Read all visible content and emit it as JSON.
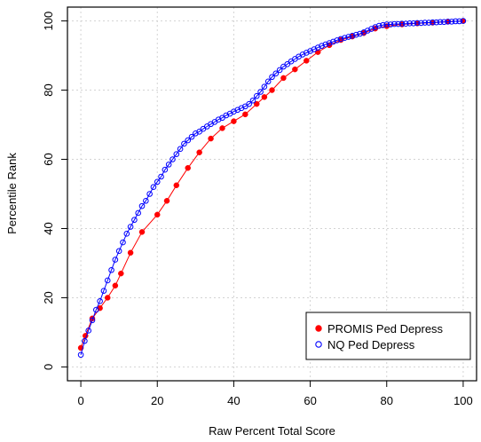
{
  "chart_data": {
    "type": "line",
    "xlabel": "Raw Percent Total Score",
    "ylabel": "Percentile Rank",
    "xlim": [
      -3.5,
      103.5
    ],
    "ylim": [
      -4,
      104
    ],
    "xticks": [
      0,
      20,
      40,
      60,
      80,
      100
    ],
    "yticks": [
      0,
      20,
      40,
      60,
      80,
      100
    ],
    "grid": true,
    "legend_position": "bottom-right",
    "series": [
      {
        "name": "PROMIS Ped Depress",
        "color": "#ff0000",
        "marker": "filled-circle",
        "x": [
          0,
          1.2,
          3,
          5,
          7,
          9,
          10.5,
          13,
          16,
          20,
          22.5,
          25,
          28,
          31,
          34,
          37,
          40,
          43,
          46,
          48,
          50,
          53,
          56,
          59,
          62,
          65,
          68,
          71,
          74,
          77,
          80,
          84,
          88,
          92,
          96,
          100
        ],
        "y": [
          5.5,
          9,
          14,
          17,
          20,
          23.5,
          27,
          33,
          39,
          44,
          48,
          52.5,
          57.5,
          62,
          66,
          69,
          71,
          73,
          76,
          78,
          80,
          83.5,
          86,
          88.5,
          91,
          93,
          94.5,
          95.5,
          96.5,
          97.8,
          98.5,
          99,
          99.3,
          99.5,
          99.8,
          100
        ]
      },
      {
        "name": "NQ Ped Depress",
        "color": "#0000ff",
        "marker": "open-circle",
        "x": [
          0,
          1,
          2,
          3,
          4,
          5,
          6,
          7,
          8,
          9,
          10,
          11,
          12,
          13,
          14,
          15,
          16,
          17,
          18,
          19,
          20,
          21,
          22,
          23,
          24,
          25,
          26,
          27,
          28,
          29,
          30,
          31,
          32,
          33,
          34,
          35,
          36,
          37,
          38,
          39,
          40,
          41,
          42,
          43,
          44,
          45,
          46,
          47,
          48,
          49,
          50,
          51,
          52,
          53,
          54,
          55,
          56,
          57,
          58,
          59,
          60,
          61,
          62,
          63,
          64,
          65,
          66,
          67,
          68,
          69,
          70,
          71,
          72,
          73,
          74,
          75,
          76,
          77,
          78,
          79,
          80,
          81,
          82,
          83,
          84,
          85,
          86,
          87,
          88,
          89,
          90,
          91,
          92,
          93,
          94,
          95,
          96,
          97,
          98,
          99,
          100
        ],
        "y": [
          3.5,
          7.5,
          10.5,
          13.5,
          16.5,
          19,
          22,
          25,
          28,
          31,
          33.5,
          36,
          38.5,
          40.5,
          42.5,
          44.5,
          46.5,
          48,
          50,
          52,
          53.5,
          55,
          57,
          58.5,
          60,
          61.5,
          63,
          64.5,
          65.5,
          66.5,
          67.5,
          68,
          68.8,
          69.5,
          70.2,
          70.8,
          71.5,
          72,
          72.7,
          73.2,
          73.8,
          74.3,
          74.8,
          75.3,
          76,
          77,
          78.3,
          79.5,
          81,
          82.5,
          83.8,
          84.8,
          85.8,
          86.8,
          87.5,
          88.3,
          89,
          89.7,
          90.3,
          90.8,
          91.3,
          91.8,
          92.3,
          92.8,
          93.2,
          93.6,
          94,
          94.4,
          94.8,
          95.1,
          95.4,
          95.7,
          96,
          96.3,
          96.7,
          97.2,
          97.7,
          98.2,
          98.6,
          98.8,
          99,
          99,
          99.1,
          99.1,
          99.2,
          99.2,
          99.3,
          99.3,
          99.4,
          99.4,
          99.5,
          99.5,
          99.6,
          99.6,
          99.7,
          99.7,
          99.8,
          99.8,
          99.9,
          99.9,
          100
        ]
      }
    ]
  }
}
